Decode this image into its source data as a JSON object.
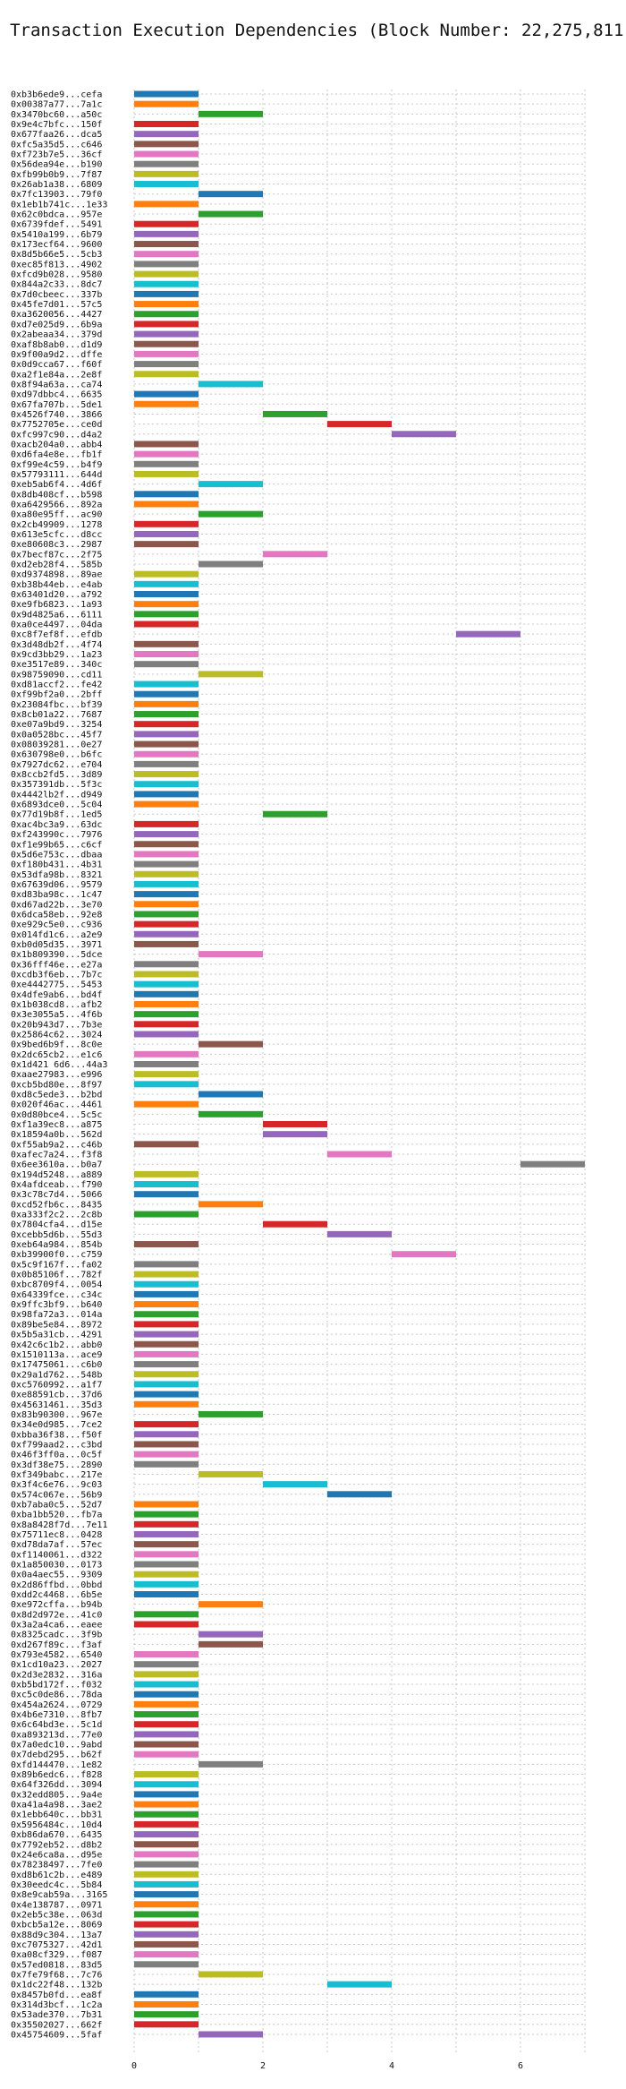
{
  "chart_data": {
    "type": "bar",
    "orientation": "horizontal",
    "title": "Transaction Execution Dependencies (Block Number: 22,275,811)",
    "xlabel": "",
    "ylabel": "",
    "xlim": [
      0,
      7
    ],
    "x_ticks": [
      0,
      2,
      4,
      6
    ],
    "grid": true,
    "colors": [
      "#1f77b4",
      "#ff7f0e",
      "#2ca02c",
      "#d62728",
      "#9467bd",
      "#8c564b",
      "#e377c2",
      "#7f7f7f",
      "#bcbd22",
      "#17becf"
    ],
    "labels": [
      "0xb3b6ede9...cefa",
      "0x00387a77...7a1c",
      "0x3470bc60...a50c",
      "0x9e4c7bfc...150f",
      "0x677faa26...dca5",
      "0xfc5a35d5...c646",
      "0xf723b7e5...36cf",
      "0x56dea94e...b190",
      "0xfb99b0b9...7f87",
      "0x26ab1a38...6809",
      "0x7fc13903...79f0",
      "0x1eb1b741c...1e33",
      "0x62c0bdca...957e",
      "0x6739fdef...5491",
      "0x5410a199...6b79",
      "0x173ecf64...9600",
      "0x8d5b66e5...5cb3",
      "0xec85f813...4902",
      "0xfcd9b028...9580",
      "0x844a2c33...8dc7",
      "0x7d0cbeec...337b",
      "0x45fe7d01...57c5",
      "0xa3620056...4427",
      "0xd7e025d9...6b9a",
      "0x2abeaa34...379d",
      "0xaf8b8ab0...d1d9",
      "0x9f00a9d2...dffe",
      "0x0d9cca67...f60f",
      "0xa2f1e84a...2e8f",
      "0x8f94a63a...ca74",
      "0xd97dbbc4...6635",
      "0x67fa707b...5de1",
      "0x4526f740...3866",
      "0x7752705e...ce0d",
      "0xfc997c90...d4a2",
      "0xacb204a0...abb4",
      "0xd6fa4e8e...fb1f",
      "0xf99e4c59...b4f9",
      "0x57793111...644d",
      "0xeb5ab6f4...4d6f",
      "0x8db408cf...b598",
      "0xa6429566...892a",
      "0xa80e95ff...ac90",
      "0x2cb49909...1278",
      "0x613e5cfc...d8cc",
      "0xe80608c3...2987",
      "0x7becf87c...2f75",
      "0xd2eb28f4...585b",
      "0xd9374898...89ae",
      "0xb38b44eb...e4ab",
      "0x63401d20...a792",
      "0xe9fb6823...1a93",
      "0x9d4825a6...6111",
      "0xa0ce4497...04da",
      "0xc8f7ef8f...efdb",
      "0x3d48db2f...4f74",
      "0x9cd3bb29...1a23",
      "0xe3517e89...340c",
      "0x98759090...cd11",
      "0xd81accf2...fe42",
      "0xf99bf2a0...2bff",
      "0x23084fbc...bf39",
      "0x8cb01a22...7687",
      "0xe07a9bd9...3254",
      "0x0a0528bc...45f7",
      "0x08039281...0e27",
      "0x630798e0...b6fc",
      "0x7927dc62...e704",
      "0x8ccb2fd5...3d89",
      "0x357391db...5f3c",
      "0x4442lb2f...d949",
      "0x6893dce0...5c04",
      "0x77d19b8f...1ed5",
      "0xac4bc3a9...63dc",
      "0xf243990c...7976",
      "0xf1e99b65...c6cf",
      "0x5d6e753c...dbaa",
      "0xf180b431...4b31",
      "0x53dfa98b...8321",
      "0x67639d06...9579",
      "0xd83ba98c...1c47",
      "0xd67ad22b...3e70",
      "0x6dca58eb...92e8",
      "0xe929c5e0...c936",
      "0x014fd1c6...a2e9",
      "0xb0d05d35...3971",
      "0x1b809390...5dce",
      "0x36fff46e...e27a",
      "0xcdb3f6eb...7b7c",
      "0xe4442775...5453",
      "0x4dfe9ab6...bd4f",
      "0x1b038cd8...afb2",
      "0x3e3055a5...4f6b",
      "0x20b943d7...7b3e",
      "0x25864c62...3024",
      "0x9bed6b9f...8c0e",
      "0x2dc65cb2...e1c6",
      "0x1d421 6d6...44a3",
      "0xaae27983...e996",
      "0xcb5bd80e...8f97",
      "0xd8c5ede3...b2bd",
      "0x020f46ac...4461",
      "0x0d80bce4...5c5c",
      "0xf1a39ec8...a875",
      "0x18594a0b...562d",
      "0xf55ab9a2...c46b",
      "0xafec7a24...f3f8",
      "0x6ee3610a...b0a7",
      "0x194d5248...a889",
      "0x4afdceab...f790",
      "0x3c78c7d4...5066",
      "0xcd52fb6c...8435",
      "0xa333f2c2...2c8b",
      "0x7804cfa4...d15e",
      "0xcebb5d6b...55d3",
      "0xeb64a984...854b",
      "0xb39900f0...c759",
      "0x5c9f167f...fa02",
      "0x0b85106f...782f",
      "0xbc8709f4...0054",
      "0x64339fce...c34c",
      "0x9ffc3bf9...b640",
      "0x98fa72a3...014a",
      "0x89be5e84...8972",
      "0x5b5a31cb...4291",
      "0x42c6c1b2...abb0",
      "0x1510113a...ace9",
      "0x17475061...c6b0",
      "0x29a1d762...548b",
      "0xc5760992...a1f7",
      "0xe88591cb...37d6",
      "0x45631461...35d3",
      "0x83b90300...967e",
      "0x34e0d985...7ce2",
      "0xbba36f38...f50f",
      "0xf799aad2...c3bd",
      "0x46f3ff0a...0c5f",
      "0x3df38e75...2890",
      "0xf349babc...217e",
      "0x3f4c6e76...9c03",
      "0x574c067e...56b9",
      "0xb7aba0c5...52d7",
      "0xba1bb520...fb7a",
      "0x8a8428f7d...7e11",
      "0x75711ec8...0428",
      "0xd78da7af...57ec",
      "0xf1140061...d322",
      "0x1a850030...0173",
      "0x0a4aec55...9309",
      "0x2d86ffbd...0bbd",
      "0xdd2c4468...6b5e",
      "0xe972cffa...b94b",
      "0x8d2d972e...41c0",
      "0x3a2a4ca6...eaee",
      "0x8325cadc...3f9b",
      "0xd267f89c...f3af",
      "0x793e4582...6540",
      "0x1cd10a23...2027",
      "0x2d3e2832...316a",
      "0xb5bd172f...f032",
      "0xc5c0de86...78da",
      "0x454a2624...0729",
      "0x4b6e7310...8fb7",
      "0x6c64bd3e...5c1d",
      "0xa893213d...77e0",
      "0x7a0edc10...9abd",
      "0x7debd295...b62f",
      "0xfd144470...1e82",
      "0x89b6edc6...f828",
      "0x64f326dd...3094",
      "0x32edd805...9a4e",
      "0xa41a4a98...3ae2",
      "0x1ebb640c...bb31",
      "0x5956484c...10d4",
      "0xb86da670...6435",
      "0x7792eb52...d8b2",
      "0x24e6ca8a...d95e",
      "0x78238497...7fe0",
      "0xd8b61c2b...e489",
      "0x30eedc4c...5b84",
      "0x8e9cab59a...3165",
      "0x4e138787...0971",
      "0x2eb5c38e...063d",
      "0xbcb5a12e...8069",
      "0x88d9c304...13a7",
      "0xc7075327...42d1",
      "0xa08cf329...f087",
      "0x57ed0818...83d5",
      "0x7fe79f68...7c76",
      "0x1dc22f48...132b",
      "0x8457b0fd...ea8f",
      "0x314d3bcf...1c2a",
      "0x53ade370...7b31",
      "0x35502027...662f",
      "0x45754609...5faf"
    ],
    "ticks_shown_as_text": [
      "0",
      "2",
      "4",
      "6"
    ],
    "bars_start": [
      0,
      0,
      1,
      0,
      0,
      0,
      0,
      0,
      0,
      0,
      1,
      0,
      1,
      0,
      0,
      0,
      0,
      0,
      0,
      0,
      0,
      0,
      0,
      0,
      0,
      0,
      0,
      0,
      0,
      1,
      0,
      0,
      2,
      3,
      4,
      0,
      0,
      0,
      0,
      1,
      0,
      0,
      1,
      0,
      0,
      0,
      2,
      1,
      0,
      0,
      0,
      0,
      0,
      0,
      5,
      0,
      0,
      0,
      1,
      0,
      0,
      0,
      0,
      0,
      0,
      0,
      0,
      0,
      0,
      0,
      0,
      0,
      2,
      0,
      0,
      0,
      0,
      0,
      0,
      0,
      0,
      0,
      0,
      0,
      0,
      0,
      1,
      0,
      0,
      0,
      0,
      0,
      0,
      0,
      0,
      1,
      0,
      0,
      0,
      0,
      1,
      0,
      1,
      2,
      2,
      0,
      3,
      6,
      0,
      0,
      0,
      1,
      0,
      2,
      3,
      0,
      4,
      0,
      0,
      0,
      0,
      0,
      0,
      0,
      0,
      0,
      0,
      0,
      0,
      0,
      0,
      0,
      1,
      0,
      0,
      0,
      0,
      0,
      1,
      2,
      3,
      0,
      0,
      0,
      0,
      0,
      0,
      0,
      0,
      0,
      0,
      1,
      0,
      0,
      1,
      1,
      0,
      0,
      0,
      0,
      0,
      0,
      0,
      0,
      0,
      0,
      0,
      1,
      0,
      0,
      0,
      0,
      0,
      0,
      0,
      0,
      0,
      0,
      0,
      0,
      0,
      0,
      0,
      0,
      0,
      0,
      0,
      0,
      1,
      3,
      0,
      0,
      0,
      0,
      1
    ],
    "bar_length": 1
  }
}
